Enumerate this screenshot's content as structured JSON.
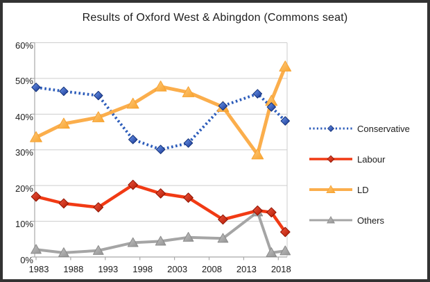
{
  "window": {
    "background": "#ffffff",
    "border_color": "#333333"
  },
  "chart_data": {
    "type": "line",
    "title": "Results of Oxford West & Abingdon (Commons seat)",
    "xlabel": "",
    "ylabel": "",
    "x": [
      1983,
      1987,
      1992,
      1997,
      2001,
      2005,
      2010,
      2015,
      2017,
      2019
    ],
    "series": [
      {
        "name": "Conservative",
        "values": [
          47.5,
          46.4,
          45.2,
          32.9,
          30.1,
          31.9,
          42.3,
          45.7,
          42.0,
          38.1
        ],
        "line_color": "#2c5cba",
        "line_style": "dotted",
        "line_width": 4,
        "marker": "diamond",
        "marker_size": 6.2,
        "marker_gradient": [
          "#6f9bf0",
          "#16348f"
        ],
        "marker_stroke": "#123078"
      },
      {
        "name": "Labour",
        "values": [
          16.9,
          15.0,
          13.9,
          20.2,
          17.8,
          16.6,
          10.5,
          13.0,
          12.5,
          7.0
        ],
        "line_color": "#f13a14",
        "line_style": "solid",
        "line_width": 4.5,
        "marker": "diamond",
        "marker_size": 6.8,
        "marker_gradient": [
          "#f0563f",
          "#b01a03"
        ],
        "marker_stroke": "#8f1300"
      },
      {
        "name": "LD",
        "values": [
          33.5,
          37.3,
          39.1,
          42.9,
          47.7,
          46.1,
          42.0,
          28.7,
          43.7,
          53.3
        ],
        "line_color": "#fbae4c",
        "line_style": "solid",
        "line_width": 5,
        "marker": "triangle",
        "marker_size": 8.2,
        "marker_gradient": [
          "#fdc97e",
          "#f9a42e"
        ],
        "marker_stroke": "#f6a231"
      },
      {
        "name": "Others",
        "values": [
          2.1,
          1.2,
          1.8,
          4.0,
          4.4,
          5.5,
          5.2,
          12.6,
          1.2,
          1.7
        ],
        "line_color": "#a5a5a5",
        "line_style": "solid",
        "line_width": 4,
        "marker": "triangle",
        "marker_size": 7.2,
        "marker_gradient": [
          "#c2c2c2",
          "#939393"
        ],
        "marker_stroke": "#8a8a8a"
      }
    ],
    "x_ticks": [
      "1983",
      "1988",
      "1993",
      "1998",
      "2003",
      "2008",
      "2013",
      "2018"
    ],
    "y_ticks": [
      "0%",
      "10%",
      "20%",
      "30%",
      "40%",
      "50%",
      "60%"
    ],
    "xlim": [
      1983,
      2019
    ],
    "ylim": [
      0,
      60
    ],
    "grid": "horizontal",
    "legend_position": "right",
    "colors": {
      "grid_line": "#cdcdcd",
      "axis_line": "#a8a8a8",
      "text": "#1c1c1c"
    }
  }
}
